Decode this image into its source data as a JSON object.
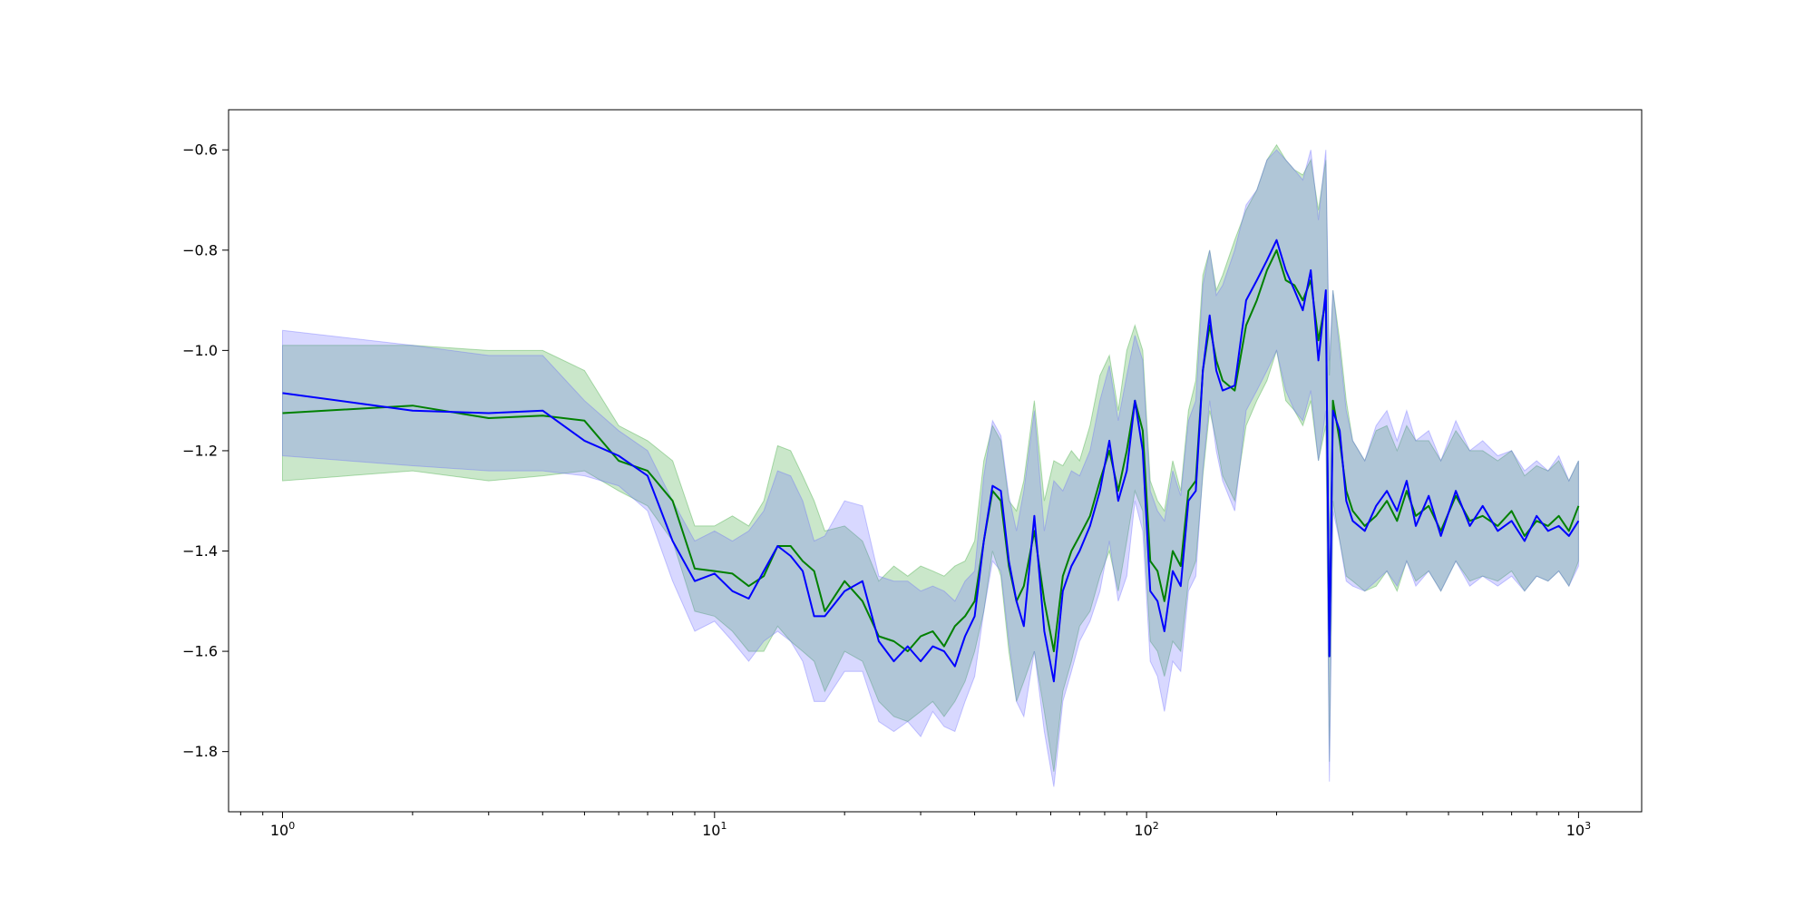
{
  "chart_data": {
    "type": "line",
    "title": "",
    "xlabel": "",
    "ylabel": "",
    "x_scale": "log",
    "xlim": [
      0.75,
      1400
    ],
    "ylim": [
      -1.92,
      -0.52
    ],
    "grid": false,
    "legend": "none",
    "x_ticks": [
      {
        "value": 1,
        "base": "10",
        "exp": "0"
      },
      {
        "value": 10,
        "base": "10",
        "exp": "1"
      },
      {
        "value": 100,
        "base": "10",
        "exp": "2"
      },
      {
        "value": 1000,
        "base": "10",
        "exp": "3"
      }
    ],
    "y_ticks": [
      {
        "value": -0.6,
        "label": "−0.6"
      },
      {
        "value": -0.8,
        "label": "−0.8"
      },
      {
        "value": -1.0,
        "label": "−1.0"
      },
      {
        "value": -1.2,
        "label": "−1.2"
      },
      {
        "value": -1.4,
        "label": "−1.4"
      },
      {
        "value": -1.6,
        "label": "−1.6"
      },
      {
        "value": -1.8,
        "label": "−1.8"
      }
    ],
    "x": [
      1,
      2,
      3,
      4,
      5,
      6,
      7,
      8,
      9,
      10,
      11,
      12,
      13,
      14,
      15,
      16,
      17,
      18,
      20,
      22,
      24,
      26,
      28,
      30,
      32,
      34,
      36,
      38,
      40,
      42,
      44,
      46,
      48,
      50,
      52,
      55,
      58,
      61,
      64,
      67,
      70,
      74,
      78,
      82,
      86,
      90,
      94,
      98,
      102,
      106,
      110,
      115,
      120,
      125,
      130,
      135,
      140,
      145,
      150,
      160,
      170,
      180,
      190,
      200,
      210,
      220,
      230,
      240,
      250,
      260,
      265,
      270,
      280,
      290,
      300,
      320,
      340,
      360,
      380,
      400,
      420,
      450,
      480,
      520,
      560,
      600,
      650,
      700,
      750,
      800,
      850,
      900,
      950,
      1000
    ],
    "series": [
      {
        "color": "#008000",
        "band_color": "#2ca02c",
        "values": [
          -1.125,
          -1.11,
          -1.135,
          -1.13,
          -1.14,
          -1.22,
          -1.24,
          -1.3,
          -1.435,
          -1.44,
          -1.445,
          -1.47,
          -1.45,
          -1.39,
          -1.39,
          -1.42,
          -1.44,
          -1.52,
          -1.46,
          -1.5,
          -1.57,
          -1.58,
          -1.6,
          -1.57,
          -1.56,
          -1.59,
          -1.55,
          -1.53,
          -1.5,
          -1.38,
          -1.28,
          -1.3,
          -1.43,
          -1.5,
          -1.47,
          -1.36,
          -1.5,
          -1.6,
          -1.45,
          -1.4,
          -1.37,
          -1.33,
          -1.26,
          -1.2,
          -1.28,
          -1.2,
          -1.1,
          -1.16,
          -1.42,
          -1.44,
          -1.5,
          -1.4,
          -1.43,
          -1.28,
          -1.26,
          -1.04,
          -0.95,
          -1.02,
          -1.06,
          -1.08,
          -0.95,
          -0.9,
          -0.84,
          -0.8,
          -0.86,
          -0.87,
          -0.9,
          -0.86,
          -0.98,
          -0.9,
          -1.61,
          -1.1,
          -1.18,
          -1.28,
          -1.32,
          -1.35,
          -1.33,
          -1.3,
          -1.34,
          -1.28,
          -1.33,
          -1.31,
          -1.36,
          -1.29,
          -1.34,
          -1.33,
          -1.35,
          -1.32,
          -1.37,
          -1.34,
          -1.35,
          -1.33,
          -1.36,
          -1.31
        ],
        "upper": [
          -0.99,
          -0.99,
          -1.0,
          -1.0,
          -1.04,
          -1.15,
          -1.18,
          -1.22,
          -1.35,
          -1.35,
          -1.33,
          -1.35,
          -1.3,
          -1.19,
          -1.2,
          -1.25,
          -1.3,
          -1.36,
          -1.35,
          -1.38,
          -1.46,
          -1.43,
          -1.45,
          -1.43,
          -1.44,
          -1.45,
          -1.43,
          -1.42,
          -1.38,
          -1.22,
          -1.15,
          -1.18,
          -1.3,
          -1.32,
          -1.26,
          -1.1,
          -1.3,
          -1.22,
          -1.23,
          -1.2,
          -1.22,
          -1.15,
          -1.05,
          -1.01,
          -1.12,
          -1.0,
          -0.95,
          -1.0,
          -1.26,
          -1.3,
          -1.32,
          -1.22,
          -1.28,
          -1.12,
          -1.06,
          -0.85,
          -0.8,
          -0.88,
          -0.85,
          -0.78,
          -0.72,
          -0.68,
          -0.62,
          -0.59,
          -0.62,
          -0.64,
          -0.65,
          -0.62,
          -0.72,
          -0.62,
          -1.05,
          -0.88,
          -0.98,
          -1.1,
          -1.18,
          -1.22,
          -1.16,
          -1.15,
          -1.2,
          -1.15,
          -1.18,
          -1.18,
          -1.22,
          -1.16,
          -1.2,
          -1.2,
          -1.22,
          -1.2,
          -1.25,
          -1.23,
          -1.24,
          -1.22,
          -1.26,
          -1.22
        ],
        "lower": [
          -1.26,
          -1.24,
          -1.26,
          -1.25,
          -1.24,
          -1.28,
          -1.31,
          -1.38,
          -1.52,
          -1.53,
          -1.56,
          -1.6,
          -1.6,
          -1.55,
          -1.58,
          -1.6,
          -1.62,
          -1.68,
          -1.6,
          -1.62,
          -1.7,
          -1.73,
          -1.74,
          -1.72,
          -1.7,
          -1.73,
          -1.7,
          -1.66,
          -1.6,
          -1.52,
          -1.4,
          -1.45,
          -1.6,
          -1.7,
          -1.66,
          -1.6,
          -1.72,
          -1.84,
          -1.68,
          -1.62,
          -1.55,
          -1.52,
          -1.45,
          -1.4,
          -1.48,
          -1.38,
          -1.28,
          -1.32,
          -1.58,
          -1.6,
          -1.65,
          -1.58,
          -1.6,
          -1.46,
          -1.42,
          -1.25,
          -1.12,
          -1.18,
          -1.25,
          -1.3,
          -1.15,
          -1.1,
          -1.06,
          -1.0,
          -1.1,
          -1.12,
          -1.15,
          -1.1,
          -1.22,
          -1.15,
          -1.82,
          -1.3,
          -1.38,
          -1.45,
          -1.46,
          -1.48,
          -1.47,
          -1.44,
          -1.48,
          -1.42,
          -1.46,
          -1.44,
          -1.48,
          -1.42,
          -1.46,
          -1.45,
          -1.46,
          -1.44,
          -1.48,
          -1.45,
          -1.46,
          -1.44,
          -1.47,
          -1.42
        ]
      },
      {
        "color": "#0000ff",
        "band_color": "#6464ff",
        "values": [
          -1.085,
          -1.12,
          -1.125,
          -1.12,
          -1.18,
          -1.21,
          -1.25,
          -1.38,
          -1.46,
          -1.445,
          -1.48,
          -1.495,
          -1.44,
          -1.39,
          -1.41,
          -1.44,
          -1.53,
          -1.53,
          -1.48,
          -1.46,
          -1.58,
          -1.62,
          -1.59,
          -1.62,
          -1.59,
          -1.6,
          -1.63,
          -1.57,
          -1.53,
          -1.38,
          -1.27,
          -1.28,
          -1.42,
          -1.5,
          -1.55,
          -1.33,
          -1.56,
          -1.66,
          -1.48,
          -1.43,
          -1.4,
          -1.35,
          -1.28,
          -1.18,
          -1.3,
          -1.24,
          -1.1,
          -1.2,
          -1.48,
          -1.5,
          -1.56,
          -1.44,
          -1.47,
          -1.3,
          -1.28,
          -1.04,
          -0.93,
          -1.04,
          -1.08,
          -1.07,
          -0.9,
          -0.86,
          -0.82,
          -0.78,
          -0.84,
          -0.88,
          -0.92,
          -0.84,
          -1.02,
          -0.88,
          -1.61,
          -1.12,
          -1.16,
          -1.3,
          -1.34,
          -1.36,
          -1.31,
          -1.28,
          -1.32,
          -1.26,
          -1.35,
          -1.29,
          -1.37,
          -1.28,
          -1.35,
          -1.31,
          -1.36,
          -1.34,
          -1.38,
          -1.33,
          -1.36,
          -1.35,
          -1.37,
          -1.34
        ],
        "upper": [
          -0.96,
          -0.99,
          -1.01,
          -1.01,
          -1.1,
          -1.16,
          -1.2,
          -1.3,
          -1.38,
          -1.36,
          -1.38,
          -1.36,
          -1.32,
          -1.24,
          -1.25,
          -1.3,
          -1.38,
          -1.37,
          -1.3,
          -1.31,
          -1.45,
          -1.46,
          -1.46,
          -1.48,
          -1.47,
          -1.48,
          -1.5,
          -1.46,
          -1.44,
          -1.25,
          -1.14,
          -1.17,
          -1.29,
          -1.36,
          -1.28,
          -1.12,
          -1.36,
          -1.26,
          -1.28,
          -1.24,
          -1.25,
          -1.2,
          -1.1,
          -1.03,
          -1.14,
          -1.05,
          -0.97,
          -1.02,
          -1.28,
          -1.32,
          -1.34,
          -1.24,
          -1.29,
          -1.14,
          -1.1,
          -0.87,
          -0.8,
          -0.89,
          -0.87,
          -0.8,
          -0.71,
          -0.68,
          -0.62,
          -0.6,
          -0.62,
          -0.64,
          -0.66,
          -0.6,
          -0.74,
          -0.6,
          -1.02,
          -0.88,
          -1.0,
          -1.12,
          -1.18,
          -1.22,
          -1.15,
          -1.12,
          -1.18,
          -1.12,
          -1.18,
          -1.16,
          -1.22,
          -1.14,
          -1.2,
          -1.18,
          -1.21,
          -1.2,
          -1.24,
          -1.22,
          -1.24,
          -1.21,
          -1.26,
          -1.22
        ],
        "lower": [
          -1.21,
          -1.23,
          -1.24,
          -1.24,
          -1.25,
          -1.27,
          -1.32,
          -1.46,
          -1.56,
          -1.54,
          -1.58,
          -1.62,
          -1.58,
          -1.56,
          -1.58,
          -1.62,
          -1.7,
          -1.7,
          -1.64,
          -1.64,
          -1.74,
          -1.76,
          -1.74,
          -1.77,
          -1.72,
          -1.75,
          -1.76,
          -1.7,
          -1.65,
          -1.52,
          -1.42,
          -1.44,
          -1.58,
          -1.7,
          -1.73,
          -1.6,
          -1.76,
          -1.87,
          -1.7,
          -1.64,
          -1.58,
          -1.54,
          -1.48,
          -1.38,
          -1.5,
          -1.45,
          -1.3,
          -1.36,
          -1.62,
          -1.65,
          -1.72,
          -1.62,
          -1.64,
          -1.48,
          -1.45,
          -1.24,
          -1.1,
          -1.2,
          -1.26,
          -1.32,
          -1.12,
          -1.08,
          -1.04,
          -1.0,
          -1.08,
          -1.12,
          -1.14,
          -1.08,
          -1.22,
          -1.12,
          -1.86,
          -1.32,
          -1.38,
          -1.46,
          -1.47,
          -1.48,
          -1.46,
          -1.44,
          -1.47,
          -1.42,
          -1.47,
          -1.44,
          -1.48,
          -1.42,
          -1.47,
          -1.45,
          -1.47,
          -1.45,
          -1.48,
          -1.45,
          -1.46,
          -1.44,
          -1.47,
          -1.43
        ]
      }
    ]
  }
}
